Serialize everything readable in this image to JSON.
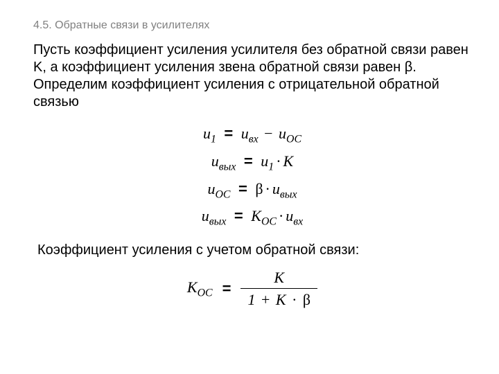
{
  "heading": "4.5. Обратные связи в усилителях",
  "paragraph1": "Пусть коэффициент усиления усилителя без обратной связи равен K, а коэффициент усиления звена обратной связи равен β. Определим коэффициент усиления с отрицательной обратной связью",
  "paragraph2": "Коэффициент усиления с учетом обратной связи:",
  "sym": {
    "u": "u",
    "K": "K",
    "Koc": "K",
    "one": "1",
    "sub1": "1",
    "vx": "вх",
    "oc": "ОС",
    "vyx": "вых",
    "beta": "β",
    "eq": "=",
    "minus": "−",
    "dot": "·",
    "plus": "+"
  }
}
